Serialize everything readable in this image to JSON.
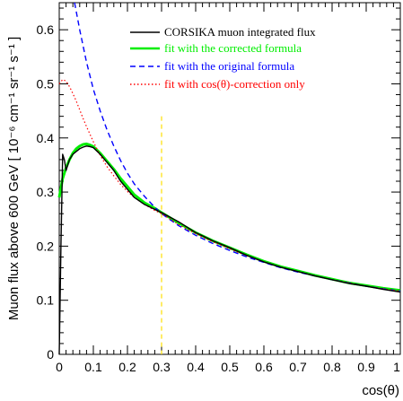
{
  "chart_data": {
    "type": "line",
    "xlabel": "cos(θ)",
    "ylabel": "Muon flux above 600 GeV [ 10⁻⁶ cm⁻¹ sr⁻¹ s⁻¹ ]",
    "xlim": [
      0,
      1
    ],
    "ylim": [
      0,
      0.65
    ],
    "x_ticks": [
      "0",
      "0.1",
      "0.2",
      "0.3",
      "0.4",
      "0.5",
      "0.6",
      "0.7",
      "0.8",
      "0.9",
      "1"
    ],
    "y_ticks": [
      "0",
      "0.1",
      "0.2",
      "0.3",
      "0.4",
      "0.5",
      "0.6"
    ],
    "grid": false,
    "legend_position": "top-right",
    "vertical_line": {
      "x": 0.3,
      "color": "#ffe000",
      "style": "dashed"
    },
    "series": [
      {
        "name": "CORSIKA muon integrated flux",
        "color": "#000000",
        "style": "solid",
        "x": [
          0.0,
          0.005,
          0.01,
          0.015,
          0.02,
          0.025,
          0.03,
          0.04,
          0.05,
          0.06,
          0.07,
          0.08,
          0.09,
          0.1,
          0.12,
          0.14,
          0.16,
          0.18,
          0.2,
          0.22,
          0.25,
          0.28,
          0.3,
          0.35,
          0.4,
          0.45,
          0.5,
          0.55,
          0.6,
          0.65,
          0.7,
          0.75,
          0.8,
          0.85,
          0.9,
          0.95,
          1.0
        ],
        "y": [
          0.0,
          0.2,
          0.37,
          0.36,
          0.34,
          0.35,
          0.36,
          0.37,
          0.375,
          0.38,
          0.383,
          0.385,
          0.384,
          0.382,
          0.37,
          0.355,
          0.34,
          0.32,
          0.305,
          0.29,
          0.277,
          0.268,
          0.262,
          0.245,
          0.225,
          0.21,
          0.197,
          0.183,
          0.171,
          0.161,
          0.153,
          0.145,
          0.138,
          0.131,
          0.126,
          0.12,
          0.115
        ]
      },
      {
        "name": "fit with the corrected formula",
        "color": "#00ee00",
        "style": "solid",
        "x": [
          0.0,
          0.01,
          0.02,
          0.03,
          0.04,
          0.05,
          0.06,
          0.07,
          0.08,
          0.09,
          0.1,
          0.12,
          0.14,
          0.16,
          0.18,
          0.2,
          0.22,
          0.25,
          0.28,
          0.3,
          0.35,
          0.4,
          0.45,
          0.5,
          0.55,
          0.6,
          0.65,
          0.7,
          0.75,
          0.8,
          0.85,
          0.9,
          0.95,
          1.0
        ],
        "y": [
          0.29,
          0.325,
          0.345,
          0.36,
          0.372,
          0.38,
          0.385,
          0.388,
          0.389,
          0.387,
          0.384,
          0.372,
          0.357,
          0.342,
          0.325,
          0.31,
          0.295,
          0.28,
          0.27,
          0.262,
          0.243,
          0.225,
          0.21,
          0.197,
          0.184,
          0.172,
          0.162,
          0.154,
          0.146,
          0.139,
          0.132,
          0.127,
          0.122,
          0.118
        ]
      },
      {
        "name": "fit with the original formula",
        "color": "#0000ff",
        "style": "dashed",
        "x": [
          0.045,
          0.06,
          0.08,
          0.1,
          0.12,
          0.14,
          0.16,
          0.18,
          0.2,
          0.22,
          0.25,
          0.28,
          0.3,
          0.35,
          0.4,
          0.45,
          0.5,
          0.55,
          0.6,
          0.65,
          0.7,
          0.75,
          0.8,
          0.85,
          0.9,
          0.95,
          1.0
        ],
        "y": [
          0.65,
          0.6,
          0.54,
          0.49,
          0.45,
          0.415,
          0.385,
          0.358,
          0.335,
          0.315,
          0.292,
          0.272,
          0.26,
          0.238,
          0.22,
          0.205,
          0.192,
          0.18,
          0.17,
          0.16,
          0.152,
          0.145,
          0.138,
          0.132,
          0.126,
          0.121,
          0.117
        ]
      },
      {
        "name": "fit with cos(θ)-correction only",
        "color": "#ff0000",
        "style": "dotted",
        "x": [
          0.0,
          0.01,
          0.02,
          0.03,
          0.04,
          0.05,
          0.06,
          0.07,
          0.08,
          0.1,
          0.12,
          0.14,
          0.16,
          0.18,
          0.2,
          0.22,
          0.25,
          0.28,
          0.3,
          0.35,
          0.4,
          0.45,
          0.5,
          0.55,
          0.6,
          0.65,
          0.7,
          0.75,
          0.8,
          0.85,
          0.9,
          0.95,
          1.0
        ],
        "y": [
          0.5,
          0.508,
          0.505,
          0.495,
          0.482,
          0.468,
          0.452,
          0.436,
          0.421,
          0.393,
          0.368,
          0.347,
          0.33,
          0.314,
          0.301,
          0.29,
          0.277,
          0.266,
          0.26,
          0.24,
          0.223,
          0.208,
          0.195,
          0.182,
          0.171,
          0.161,
          0.153,
          0.145,
          0.138,
          0.132,
          0.126,
          0.121,
          0.117
        ]
      }
    ]
  }
}
